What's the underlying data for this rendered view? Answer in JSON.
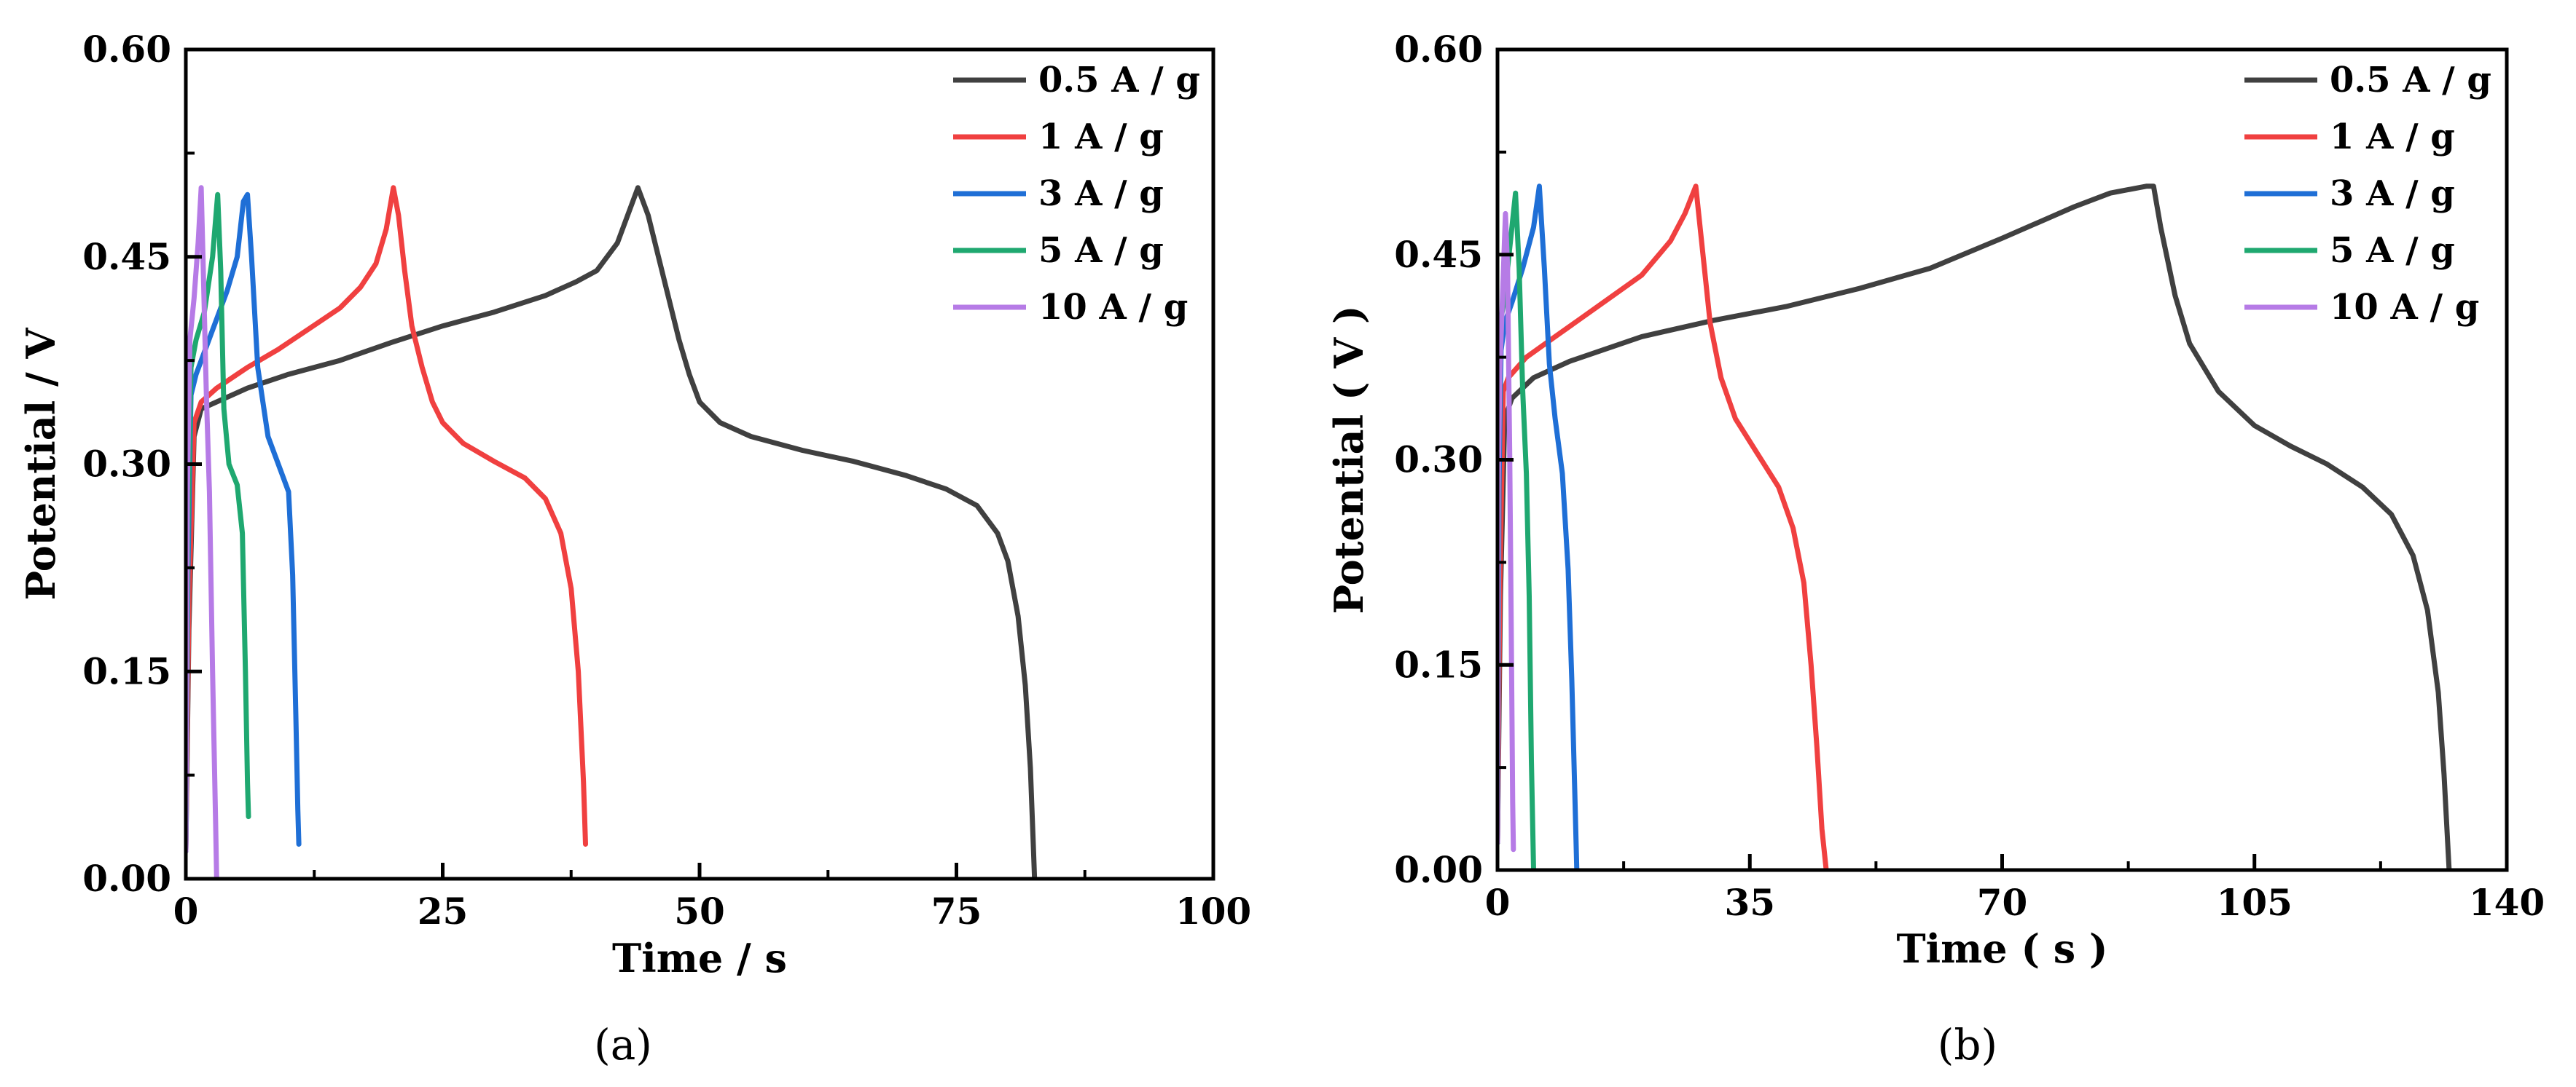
{
  "chart_data": [
    {
      "type": "line",
      "panel_label": "(a)",
      "xlabel": "Time / s",
      "ylabel": "Potential / V",
      "xlim": [
        0,
        100
      ],
      "ylim": [
        0,
        0.6
      ],
      "xticks": [
        0,
        25,
        50,
        75,
        100
      ],
      "xtick_labels": [
        "0",
        "25",
        "50",
        "75",
        "100"
      ],
      "yticks": [
        0,
        0.15,
        0.3,
        0.45,
        0.6
      ],
      "ytick_labels": [
        "0.00",
        "0.15",
        "0.30",
        "0.45",
        "0.60"
      ],
      "grid": false,
      "legend_position": "top-right",
      "series": [
        {
          "name": "0.5 A / g",
          "color": "#404040",
          "x": [
            0,
            0.3,
            0.8,
            1.5,
            3,
            6,
            10,
            15,
            20,
            25,
            30,
            35,
            38,
            40,
            42,
            44,
            45,
            46,
            47,
            48,
            49,
            50,
            52,
            55,
            60,
            65,
            70,
            74,
            77,
            79,
            80,
            81,
            81.7,
            82.2,
            82.5,
            82.6
          ],
          "y": [
            0.02,
            0.18,
            0.32,
            0.34,
            0.345,
            0.355,
            0.365,
            0.375,
            0.388,
            0.4,
            0.41,
            0.422,
            0.432,
            0.44,
            0.46,
            0.5,
            0.48,
            0.45,
            0.42,
            0.39,
            0.365,
            0.345,
            0.33,
            0.32,
            0.31,
            0.302,
            0.292,
            0.282,
            0.27,
            0.25,
            0.23,
            0.19,
            0.14,
            0.08,
            0.02,
            0.0
          ]
        },
        {
          "name": "1 A / g",
          "color": "#f04040",
          "x": [
            0,
            0.3,
            0.8,
            1.5,
            3,
            6,
            9,
            12,
            15,
            17,
            18.5,
            19.5,
            20.2,
            20.7,
            21.3,
            22,
            23,
            24,
            25,
            27,
            30,
            33,
            35,
            36.5,
            37.5,
            38.2,
            38.7,
            38.9
          ],
          "y": [
            0.02,
            0.2,
            0.33,
            0.345,
            0.355,
            0.37,
            0.383,
            0.398,
            0.413,
            0.428,
            0.445,
            0.47,
            0.5,
            0.48,
            0.44,
            0.4,
            0.37,
            0.345,
            0.33,
            0.315,
            0.302,
            0.29,
            0.275,
            0.25,
            0.21,
            0.15,
            0.07,
            0.025
          ]
        },
        {
          "name": "3 A / g",
          "color": "#1f6fd6",
          "x": [
            0,
            0.2,
            0.5,
            1,
            2,
            3,
            4,
            5,
            5.6,
            6.0,
            6.4,
            7,
            8,
            9,
            10,
            10.4,
            10.7,
            10.9,
            11.0
          ],
          "y": [
            0.02,
            0.22,
            0.35,
            0.365,
            0.385,
            0.405,
            0.425,
            0.45,
            0.49,
            0.495,
            0.45,
            0.37,
            0.32,
            0.3,
            0.28,
            0.22,
            0.12,
            0.05,
            0.025
          ]
        },
        {
          "name": "5 A / g",
          "color": "#1fa870",
          "x": [
            0,
            0.2,
            0.5,
            1,
            1.8,
            2.6,
            3.1,
            3.4,
            3.7,
            4.2,
            5,
            5.5,
            5.8,
            6.0,
            6.1
          ],
          "y": [
            0.02,
            0.25,
            0.37,
            0.39,
            0.41,
            0.45,
            0.495,
            0.44,
            0.34,
            0.3,
            0.285,
            0.25,
            0.15,
            0.07,
            0.045
          ]
        },
        {
          "name": "10 A / g",
          "color": "#b67be6",
          "x": [
            0,
            0.15,
            0.4,
            0.8,
            1.2,
            1.5,
            1.7,
            2.0,
            2.3,
            2.6,
            2.9,
            3.0
          ],
          "y": [
            0.02,
            0.28,
            0.39,
            0.42,
            0.46,
            0.5,
            0.44,
            0.35,
            0.28,
            0.15,
            0.04,
            0.0
          ]
        }
      ]
    },
    {
      "type": "line",
      "panel_label": "(b)",
      "xlabel": "Time ( s )",
      "ylabel": "Potential ( V )",
      "xlim": [
        0,
        140
      ],
      "ylim": [
        0,
        0.6
      ],
      "xticks": [
        0,
        35,
        70,
        105,
        140
      ],
      "xtick_labels": [
        "0",
        "35",
        "70",
        "105",
        "140"
      ],
      "yticks": [
        0,
        0.15,
        0.3,
        0.45,
        0.6
      ],
      "ytick_labels": [
        "0.00",
        "0.15",
        "0.30",
        "0.45",
        "0.60"
      ],
      "grid": false,
      "legend_position": "top-right",
      "series": [
        {
          "name": "0.5 A / g",
          "color": "#404040",
          "x": [
            0,
            0.4,
            1,
            2,
            5,
            10,
            20,
            30,
            40,
            50,
            60,
            70,
            80,
            85,
            90,
            91,
            92,
            94,
            96,
            100,
            105,
            110,
            115,
            120,
            124,
            127,
            129,
            130.5,
            131.3,
            131.8,
            132
          ],
          "y": [
            0.02,
            0.2,
            0.33,
            0.345,
            0.36,
            0.372,
            0.39,
            0.402,
            0.412,
            0.425,
            0.44,
            0.462,
            0.485,
            0.495,
            0.5,
            0.5,
            0.47,
            0.42,
            0.385,
            0.35,
            0.325,
            0.31,
            0.297,
            0.28,
            0.26,
            0.23,
            0.19,
            0.13,
            0.07,
            0.02,
            0.0
          ]
        },
        {
          "name": "1 A / g",
          "color": "#f04040",
          "x": [
            0,
            0.3,
            0.8,
            1.5,
            4,
            8,
            12,
            16,
            20,
            24,
            26,
            27.5,
            28.3,
            29.5,
            31,
            33,
            36,
            39,
            41,
            42.5,
            43.5,
            44.3,
            45,
            45.6
          ],
          "y": [
            0.02,
            0.2,
            0.35,
            0.36,
            0.375,
            0.39,
            0.405,
            0.42,
            0.435,
            0.46,
            0.48,
            0.5,
            0.46,
            0.4,
            0.36,
            0.33,
            0.305,
            0.28,
            0.25,
            0.21,
            0.15,
            0.09,
            0.03,
            0.0
          ]
        },
        {
          "name": "3 A / g",
          "color": "#1f6fd6",
          "x": [
            0,
            0.2,
            0.5,
            1,
            2,
            3.5,
            5,
            5.8,
            6.5,
            7.2,
            8,
            9,
            9.8,
            10.3,
            10.7,
            11
          ],
          "y": [
            0.02,
            0.28,
            0.38,
            0.4,
            0.415,
            0.44,
            0.47,
            0.5,
            0.44,
            0.37,
            0.33,
            0.29,
            0.22,
            0.14,
            0.06,
            0.0
          ]
        },
        {
          "name": "5 A / g",
          "color": "#1fa870",
          "x": [
            0,
            0.15,
            0.4,
            1,
            1.8,
            2.5,
            3.0,
            3.5,
            4.0,
            4.4,
            4.7,
            5.0
          ],
          "y": [
            0.02,
            0.3,
            0.4,
            0.42,
            0.46,
            0.495,
            0.44,
            0.35,
            0.29,
            0.2,
            0.08,
            0.0
          ]
        },
        {
          "name": "10 A / g",
          "color": "#b67be6",
          "x": [
            0,
            0.1,
            0.3,
            0.7,
            1.1,
            1.4,
            1.7,
            1.9,
            2.1,
            2.2
          ],
          "y": [
            0.02,
            0.28,
            0.36,
            0.42,
            0.48,
            0.44,
            0.3,
            0.18,
            0.05,
            0.015
          ]
        }
      ]
    }
  ]
}
